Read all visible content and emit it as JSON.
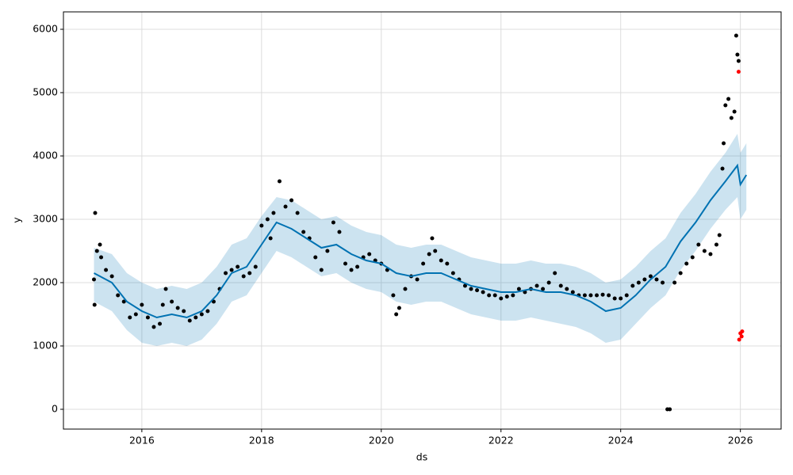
{
  "chart_data": {
    "type": "scatter",
    "xlabel": "ds",
    "ylabel": "y",
    "xlim": [
      2014.69,
      2026.68
    ],
    "ylim": [
      -312.5,
      6275
    ],
    "xticks": [
      2016,
      2018,
      2020,
      2022,
      2024,
      2026
    ],
    "yticks": [
      0,
      1000,
      2000,
      3000,
      4000,
      5000,
      6000
    ],
    "grid": true,
    "forecast": {
      "color": "#0072b2",
      "band_color": "#0072b2",
      "x": [
        2015.2,
        2015.5,
        2015.75,
        2016.0,
        2016.25,
        2016.5,
        2016.75,
        2017.0,
        2017.25,
        2017.5,
        2017.75,
        2018.0,
        2018.25,
        2018.5,
        2018.75,
        2019.0,
        2019.25,
        2019.5,
        2019.75,
        2020.0,
        2020.25,
        2020.5,
        2020.75,
        2021.0,
        2021.25,
        2021.5,
        2021.75,
        2022.0,
        2022.25,
        2022.5,
        2022.75,
        2023.0,
        2023.25,
        2023.5,
        2023.75,
        2024.0,
        2024.25,
        2024.5,
        2024.75,
        2025.0,
        2025.25,
        2025.5,
        2025.75,
        2025.95,
        2026.0,
        2026.1
      ],
      "values": [
        2150,
        2000,
        1700,
        1550,
        1450,
        1500,
        1450,
        1550,
        1800,
        2150,
        2250,
        2600,
        2950,
        2850,
        2700,
        2550,
        2600,
        2450,
        2350,
        2300,
        2150,
        2100,
        2150,
        2150,
        2050,
        1950,
        1900,
        1850,
        1850,
        1900,
        1850,
        1850,
        1800,
        1700,
        1550,
        1600,
        1800,
        2050,
        2250,
        2650,
        2950,
        3300,
        3600,
        3850,
        3550,
        3700
      ],
      "lower": [
        1700,
        1550,
        1250,
        1050,
        1000,
        1050,
        1000,
        1100,
        1350,
        1700,
        1800,
        2150,
        2500,
        2400,
        2250,
        2100,
        2150,
        2000,
        1900,
        1850,
        1700,
        1650,
        1700,
        1700,
        1600,
        1500,
        1450,
        1400,
        1400,
        1450,
        1400,
        1350,
        1300,
        1200,
        1050,
        1100,
        1350,
        1600,
        1800,
        2200,
        2500,
        2850,
        3150,
        3350,
        3000,
        3150
      ],
      "upper": [
        2550,
        2450,
        2150,
        2000,
        1900,
        1950,
        1900,
        2000,
        2250,
        2600,
        2700,
        3050,
        3350,
        3300,
        3150,
        3000,
        3050,
        2900,
        2800,
        2750,
        2600,
        2550,
        2600,
        2600,
        2500,
        2400,
        2350,
        2300,
        2300,
        2350,
        2300,
        2300,
        2250,
        2150,
        2000,
        2050,
        2250,
        2500,
        2700,
        3100,
        3400,
        3750,
        4050,
        4350,
        4050,
        4200
      ]
    },
    "observed": {
      "color": "#000000",
      "x": [
        2015.2,
        2015.21,
        2015.22,
        2015.25,
        2015.3,
        2015.32,
        2015.4,
        2015.5,
        2015.6,
        2015.7,
        2015.8,
        2015.9,
        2016.0,
        2016.1,
        2016.2,
        2016.3,
        2016.35,
        2016.4,
        2016.5,
        2016.6,
        2016.7,
        2016.8,
        2016.9,
        2017.0,
        2017.1,
        2017.2,
        2017.3,
        2017.4,
        2017.5,
        2017.6,
        2017.7,
        2017.8,
        2017.9,
        2018.0,
        2018.1,
        2018.15,
        2018.2,
        2018.3,
        2018.4,
        2018.5,
        2018.6,
        2018.7,
        2018.8,
        2018.9,
        2019.0,
        2019.1,
        2019.2,
        2019.3,
        2019.4,
        2019.5,
        2019.6,
        2019.7,
        2019.8,
        2019.9,
        2020.0,
        2020.1,
        2020.2,
        2020.25,
        2020.3,
        2020.4,
        2020.5,
        2020.6,
        2020.7,
        2020.8,
        2020.85,
        2020.9,
        2021.0,
        2021.1,
        2021.2,
        2021.3,
        2021.4,
        2021.5,
        2021.6,
        2021.7,
        2021.8,
        2021.9,
        2022.0,
        2022.1,
        2022.2,
        2022.3,
        2022.4,
        2022.5,
        2022.6,
        2022.7,
        2022.8,
        2022.9,
        2023.0,
        2023.1,
        2023.2,
        2023.3,
        2023.4,
        2023.5,
        2023.6,
        2023.7,
        2023.8,
        2023.9,
        2024.0,
        2024.1,
        2024.2,
        2024.3,
        2024.4,
        2024.5,
        2024.6,
        2024.7,
        2024.78,
        2024.82,
        2024.9,
        2025.0,
        2025.1,
        2025.2,
        2025.3,
        2025.4,
        2025.5,
        2025.6,
        2025.65,
        2025.7,
        2025.72,
        2025.75,
        2025.8,
        2025.85,
        2025.9,
        2025.93,
        2025.95,
        2025.97
      ],
      "values": [
        2050,
        1650,
        3100,
        2500,
        2600,
        2400,
        2200,
        2100,
        1800,
        1700,
        1450,
        1500,
        1650,
        1450,
        1300,
        1350,
        1650,
        1900,
        1700,
        1600,
        1550,
        1400,
        1450,
        1500,
        1550,
        1700,
        1900,
        2150,
        2200,
        2250,
        2100,
        2150,
        2250,
        2900,
        3000,
        2700,
        3100,
        3600,
        3200,
        3300,
        3100,
        2800,
        2700,
        2400,
        2200,
        2500,
        2950,
        2800,
        2300,
        2200,
        2250,
        2400,
        2450,
        2350,
        2300,
        2200,
        1800,
        1500,
        1600,
        1900,
        2100,
        2050,
        2300,
        2450,
        2700,
        2500,
        2350,
        2300,
        2150,
        2050,
        1950,
        1900,
        1880,
        1850,
        1800,
        1800,
        1750,
        1780,
        1800,
        1900,
        1850,
        1900,
        1950,
        1900,
        2000,
        2150,
        1950,
        1900,
        1850,
        1800,
        1800,
        1800,
        1800,
        1810,
        1800,
        1750,
        1750,
        1800,
        1950,
        2000,
        2050,
        2100,
        2050,
        2000,
        0,
        0,
        2000,
        2150,
        2300,
        2400,
        2600,
        2500,
        2450,
        2600,
        2750,
        3800,
        4200,
        4800,
        4900,
        4600,
        4700,
        5900,
        5600,
        5500
      ]
    },
    "outliers": {
      "color": "#ff0000",
      "x": [
        2025.97,
        2025.98,
        2026.0,
        2026.02,
        2026.03
      ],
      "values": [
        5330,
        1100,
        1200,
        1150,
        1230
      ]
    }
  }
}
